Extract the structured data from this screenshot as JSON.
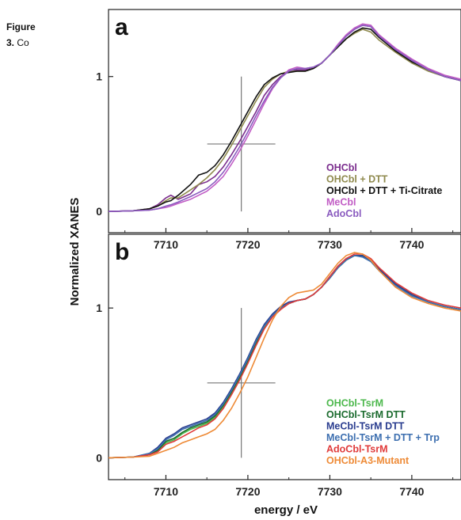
{
  "caption": {
    "label": "Figure",
    "number": "3.",
    "text": "Co"
  },
  "chart_data": [
    {
      "type": "line",
      "panel_label": "a",
      "xlabel": "",
      "ylabel": "Normalized XANES",
      "xlim": [
        7703,
        7746
      ],
      "ylim": [
        -0.04,
        1.45
      ],
      "xticks": [
        7710,
        7720,
        7730,
        7740
      ],
      "yticks": [
        0,
        1
      ],
      "crosshair": {
        "x": 7719.2,
        "y": 0.5
      },
      "legend_position": "bottom-right",
      "series": [
        {
          "name": "OHCbl",
          "color": "#7b2d8e",
          "x": [
            7703,
            7706,
            7708,
            7709,
            7710,
            7710.6,
            7711.5,
            7713,
            7714,
            7715,
            7716,
            7717,
            7718,
            7719,
            7720,
            7721,
            7722,
            7723,
            7724,
            7725,
            7726,
            7727,
            7728,
            7729,
            7730,
            7731,
            7732,
            7733,
            7734,
            7735,
            7736,
            7738,
            7740,
            7742,
            7744,
            7746
          ],
          "y": [
            0,
            0.005,
            0.02,
            0.05,
            0.1,
            0.12,
            0.09,
            0.13,
            0.2,
            0.22,
            0.26,
            0.33,
            0.42,
            0.52,
            0.63,
            0.74,
            0.86,
            0.94,
            1,
            1.04,
            1.05,
            1.05,
            1.06,
            1.1,
            1.16,
            1.23,
            1.3,
            1.35,
            1.38,
            1.37,
            1.3,
            1.2,
            1.12,
            1.05,
            1,
            0.97
          ]
        },
        {
          "name": "OHCbl + DTT",
          "color": "#8f8a4e",
          "x": [
            7703,
            7706,
            7708,
            7709,
            7710,
            7710.6,
            7711.5,
            7713,
            7714,
            7715,
            7716,
            7717,
            7718,
            7719,
            7720,
            7721,
            7722,
            7723,
            7724,
            7725,
            7726,
            7727,
            7728,
            7729,
            7730,
            7731,
            7732,
            7733,
            7734,
            7735,
            7736,
            7738,
            7740,
            7742,
            7744,
            7746
          ],
          "y": [
            0,
            0.005,
            0.02,
            0.04,
            0.08,
            0.1,
            0.1,
            0.16,
            0.2,
            0.25,
            0.31,
            0.39,
            0.49,
            0.6,
            0.71,
            0.82,
            0.92,
            0.98,
            1.02,
            1.04,
            1.04,
            1.04,
            1.06,
            1.1,
            1.16,
            1.22,
            1.28,
            1.32,
            1.35,
            1.33,
            1.27,
            1.18,
            1.1,
            1.04,
            1,
            0.97
          ]
        },
        {
          "name": "OHCbl + DTT + Ti-Citrate",
          "color": "#111111",
          "x": [
            7703,
            7706,
            7708,
            7709,
            7710,
            7710.6,
            7711.5,
            7713,
            7714,
            7715,
            7716,
            7717,
            7718,
            7719,
            7720,
            7721,
            7722,
            7723,
            7724,
            7725,
            7726,
            7727,
            7728,
            7729,
            7730,
            7731,
            7732,
            7733,
            7734,
            7735,
            7736,
            7738,
            7740,
            7742,
            7744,
            7746
          ],
          "y": [
            0,
            0.005,
            0.02,
            0.04,
            0.07,
            0.08,
            0.12,
            0.2,
            0.27,
            0.29,
            0.34,
            0.42,
            0.52,
            0.63,
            0.74,
            0.85,
            0.94,
            0.99,
            1.02,
            1.03,
            1.04,
            1.04,
            1.06,
            1.1,
            1.16,
            1.22,
            1.28,
            1.33,
            1.36,
            1.35,
            1.29,
            1.19,
            1.11,
            1.05,
            1,
            0.97
          ]
        },
        {
          "name": "MeCbl",
          "color": "#c15cc5",
          "x": [
            7703,
            7706,
            7708,
            7709,
            7710,
            7710.6,
            7711.5,
            7713,
            7714,
            7715,
            7716,
            7717,
            7718,
            7719,
            7720,
            7721,
            7722,
            7723,
            7724,
            7725,
            7726,
            7727,
            7728,
            7729,
            7730,
            7731,
            7732,
            7733,
            7734,
            7735,
            7736,
            7738,
            7740,
            7742,
            7744,
            7746
          ],
          "y": [
            0,
            0.005,
            0.01,
            0.02,
            0.03,
            0.04,
            0.06,
            0.09,
            0.12,
            0.15,
            0.2,
            0.26,
            0.35,
            0.45,
            0.56,
            0.68,
            0.8,
            0.91,
            0.99,
            1.05,
            1.07,
            1.06,
            1.07,
            1.1,
            1.16,
            1.24,
            1.31,
            1.36,
            1.39,
            1.38,
            1.31,
            1.21,
            1.13,
            1.06,
            1.01,
            0.98
          ]
        },
        {
          "name": "AdoCbl",
          "color": "#8a5bbf",
          "x": [
            7703,
            7706,
            7708,
            7709,
            7710,
            7710.6,
            7711.5,
            7713,
            7714,
            7715,
            7716,
            7717,
            7718,
            7719,
            7720,
            7721,
            7722,
            7723,
            7724,
            7725,
            7726,
            7727,
            7728,
            7729,
            7730,
            7731,
            7732,
            7733,
            7734,
            7735,
            7736,
            7738,
            7740,
            7742,
            7744,
            7746
          ],
          "y": [
            0,
            0.005,
            0.01,
            0.02,
            0.04,
            0.05,
            0.07,
            0.11,
            0.14,
            0.17,
            0.22,
            0.29,
            0.38,
            0.48,
            0.59,
            0.71,
            0.82,
            0.92,
            0.99,
            1.04,
            1.06,
            1.06,
            1.07,
            1.1,
            1.16,
            1.23,
            1.3,
            1.35,
            1.38,
            1.37,
            1.3,
            1.2,
            1.12,
            1.05,
            1,
            0.97
          ]
        }
      ]
    },
    {
      "type": "line",
      "panel_label": "b",
      "xlabel": "energy / eV",
      "ylabel": "Normalized XANES",
      "xlim": [
        7703,
        7746
      ],
      "ylim": [
        -0.04,
        1.45
      ],
      "xticks": [
        7710,
        7720,
        7730,
        7740
      ],
      "yticks": [
        0,
        1
      ],
      "crosshair": {
        "x": 7719.2,
        "y": 0.5
      },
      "legend_position": "bottom-right",
      "series": [
        {
          "name": "OHCbl-TsrM",
          "color": "#4cb84c",
          "x": [
            7703,
            7706,
            7708,
            7709,
            7710,
            7711,
            7712,
            7713,
            7714,
            7715,
            7716,
            7717,
            7718,
            7719,
            7720,
            7721,
            7722,
            7723,
            7724,
            7725,
            7726,
            7727,
            7728,
            7729,
            7730,
            7731,
            7732,
            7733,
            7734,
            7735,
            7736,
            7738,
            7740,
            7742,
            7744,
            7746
          ],
          "y": [
            0,
            0.005,
            0.02,
            0.05,
            0.1,
            0.12,
            0.16,
            0.19,
            0.21,
            0.23,
            0.27,
            0.34,
            0.43,
            0.53,
            0.64,
            0.76,
            0.87,
            0.95,
            1,
            1.03,
            1.05,
            1.06,
            1.09,
            1.14,
            1.21,
            1.27,
            1.32,
            1.35,
            1.35,
            1.32,
            1.26,
            1.16,
            1.09,
            1.04,
            1.01,
            0.99
          ]
        },
        {
          "name": "OHCbl-TsrM DTT",
          "color": "#1b6b2e",
          "x": [
            7703,
            7706,
            7708,
            7709,
            7710,
            7711,
            7712,
            7713,
            7714,
            7715,
            7716,
            7717,
            7718,
            7719,
            7720,
            7721,
            7722,
            7723,
            7724,
            7725,
            7726,
            7727,
            7728,
            7729,
            7730,
            7731,
            7732,
            7733,
            7734,
            7735,
            7736,
            7738,
            7740,
            7742,
            7744,
            7746
          ],
          "y": [
            0,
            0.005,
            0.02,
            0.05,
            0.11,
            0.13,
            0.17,
            0.2,
            0.22,
            0.24,
            0.28,
            0.35,
            0.44,
            0.54,
            0.65,
            0.77,
            0.88,
            0.95,
            1,
            1.03,
            1.05,
            1.06,
            1.09,
            1.14,
            1.2,
            1.27,
            1.32,
            1.35,
            1.35,
            1.32,
            1.26,
            1.16,
            1.09,
            1.04,
            1.01,
            0.99
          ]
        },
        {
          "name": "MeCbl-TsrM  DTT",
          "color": "#2a3d8f",
          "x": [
            7703,
            7706,
            7708,
            7709,
            7710,
            7711,
            7712,
            7713,
            7714,
            7715,
            7716,
            7717,
            7718,
            7719,
            7720,
            7721,
            7722,
            7723,
            7724,
            7725,
            7726,
            7727,
            7728,
            7729,
            7730,
            7731,
            7732,
            7733,
            7734,
            7735,
            7736,
            7738,
            7740,
            7742,
            7744,
            7746
          ],
          "y": [
            0,
            0.005,
            0.03,
            0.07,
            0.13,
            0.16,
            0.2,
            0.22,
            0.24,
            0.26,
            0.3,
            0.37,
            0.46,
            0.56,
            0.67,
            0.79,
            0.89,
            0.96,
            1.01,
            1.04,
            1.05,
            1.06,
            1.09,
            1.14,
            1.21,
            1.28,
            1.33,
            1.35,
            1.35,
            1.32,
            1.26,
            1.16,
            1.09,
            1.04,
            1.01,
            0.99
          ]
        },
        {
          "name": "MeCbl-TsrM + DTT + Trp",
          "color": "#3d6fb0",
          "x": [
            7703,
            7706,
            7708,
            7709,
            7710,
            7711,
            7712,
            7713,
            7714,
            7715,
            7716,
            7717,
            7718,
            7719,
            7720,
            7721,
            7722,
            7723,
            7724,
            7725,
            7726,
            7727,
            7728,
            7729,
            7730,
            7731,
            7732,
            7733,
            7734,
            7735,
            7736,
            7738,
            7740,
            7742,
            7744,
            7746
          ],
          "y": [
            0,
            0.005,
            0.03,
            0.06,
            0.12,
            0.15,
            0.19,
            0.21,
            0.23,
            0.25,
            0.29,
            0.36,
            0.45,
            0.55,
            0.66,
            0.78,
            0.88,
            0.95,
            1,
            1.03,
            1.05,
            1.06,
            1.09,
            1.14,
            1.2,
            1.27,
            1.32,
            1.35,
            1.34,
            1.31,
            1.25,
            1.15,
            1.08,
            1.04,
            1.01,
            0.99
          ]
        },
        {
          "name": "AdoCbl-TsrM",
          "color": "#e03a3a",
          "x": [
            7703,
            7706,
            7708,
            7709,
            7710,
            7711,
            7712,
            7713,
            7714,
            7715,
            7716,
            7717,
            7718,
            7719,
            7720,
            7721,
            7722,
            7723,
            7724,
            7725,
            7726,
            7727,
            7728,
            7729,
            7730,
            7731,
            7732,
            7733,
            7734,
            7735,
            7736,
            7738,
            7740,
            7742,
            7744,
            7746
          ],
          "y": [
            0,
            0.005,
            0.02,
            0.04,
            0.09,
            0.11,
            0.14,
            0.17,
            0.2,
            0.22,
            0.26,
            0.33,
            0.42,
            0.52,
            0.63,
            0.75,
            0.86,
            0.94,
            0.99,
            1.03,
            1.05,
            1.06,
            1.09,
            1.14,
            1.21,
            1.28,
            1.33,
            1.36,
            1.36,
            1.33,
            1.27,
            1.17,
            1.1,
            1.05,
            1.02,
            1
          ]
        },
        {
          "name": "OHCbl-A3-Mutant",
          "color": "#ee8a36",
          "x": [
            7703,
            7706,
            7708,
            7709,
            7710,
            7711,
            7712,
            7713,
            7714,
            7715,
            7716,
            7717,
            7718,
            7719,
            7720,
            7721,
            7722,
            7723,
            7724,
            7725,
            7726,
            7727,
            7728,
            7729,
            7730,
            7731,
            7732,
            7733,
            7734,
            7735,
            7736,
            7738,
            7740,
            7742,
            7744,
            7746
          ],
          "y": [
            0,
            0.005,
            0.01,
            0.03,
            0.05,
            0.07,
            0.1,
            0.12,
            0.14,
            0.16,
            0.19,
            0.25,
            0.33,
            0.43,
            0.54,
            0.67,
            0.8,
            0.92,
            1.01,
            1.07,
            1.1,
            1.11,
            1.12,
            1.16,
            1.23,
            1.3,
            1.35,
            1.37,
            1.36,
            1.32,
            1.25,
            1.14,
            1.07,
            1.03,
            1,
            0.98
          ]
        }
      ]
    }
  ],
  "axis_title": "Normalized XANES",
  "x_axis_title": "energy / eV"
}
